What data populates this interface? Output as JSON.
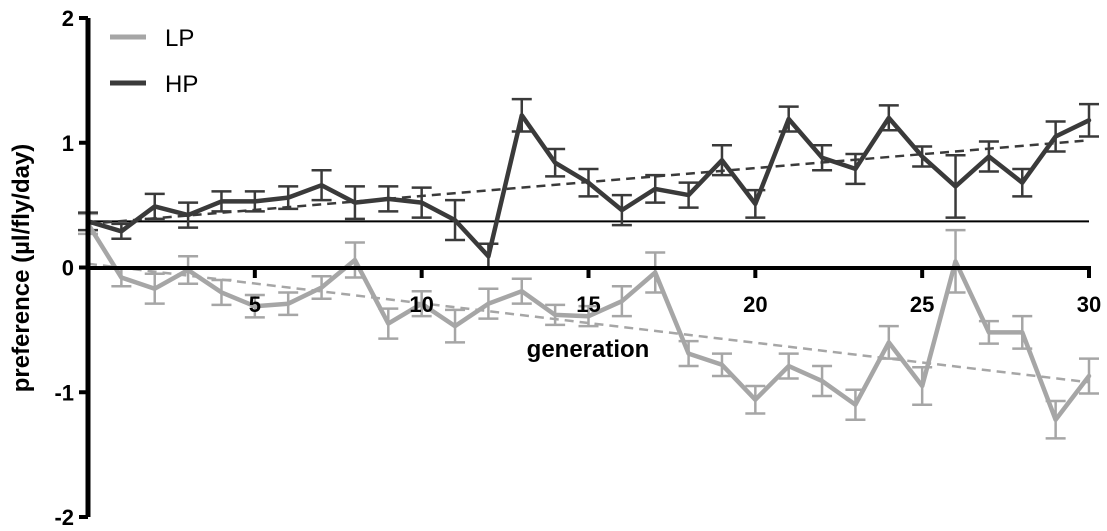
{
  "chart_data": {
    "type": "line",
    "xlabel": "generation",
    "ylabel": "preference (µl/fly/day)",
    "xlim": [
      0,
      30
    ],
    "ylim": [
      -2,
      2
    ],
    "x_ticks": [
      5,
      10,
      15,
      20,
      25,
      30
    ],
    "y_ticks": [
      -2,
      -1,
      0,
      1,
      2
    ],
    "grid": false,
    "legend_position": "top-left",
    "reference_line_y": 0.37,
    "x": [
      0,
      1,
      2,
      3,
      4,
      5,
      6,
      7,
      8,
      9,
      10,
      11,
      12,
      13,
      14,
      15,
      16,
      17,
      18,
      19,
      20,
      21,
      22,
      23,
      24,
      25,
      26,
      27,
      28,
      29,
      30
    ],
    "series": [
      {
        "name": "LP",
        "color": "#a6a6a6",
        "values": [
          0.35,
          -0.08,
          -0.17,
          -0.02,
          -0.2,
          -0.31,
          -0.29,
          -0.16,
          0.06,
          -0.45,
          -0.29,
          -0.47,
          -0.29,
          -0.19,
          -0.38,
          -0.39,
          -0.27,
          -0.04,
          -0.69,
          -0.78,
          -1.06,
          -0.79,
          -0.91,
          -1.1,
          -0.6,
          -0.95,
          0.05,
          -0.52,
          -0.52,
          -1.22,
          -0.87
        ],
        "errors": [
          0.08,
          0.07,
          0.12,
          0.11,
          0.1,
          0.09,
          0.09,
          0.09,
          0.14,
          0.12,
          0.1,
          0.13,
          0.12,
          0.1,
          0.08,
          0.08,
          0.12,
          0.16,
          0.1,
          0.09,
          0.11,
          0.1,
          0.12,
          0.12,
          0.13,
          0.15,
          0.25,
          0.09,
          0.13,
          0.15,
          0.14
        ],
        "trend": [
          0.03,
          -0.92
        ]
      },
      {
        "name": "HP",
        "color": "#3a3a3a",
        "values": [
          0.37,
          0.29,
          0.49,
          0.42,
          0.53,
          0.53,
          0.56,
          0.66,
          0.52,
          0.55,
          0.52,
          0.38,
          0.09,
          1.22,
          0.84,
          0.68,
          0.46,
          0.63,
          0.58,
          0.86,
          0.51,
          1.19,
          0.88,
          0.79,
          1.2,
          0.89,
          0.65,
          0.89,
          0.68,
          1.05,
          1.18
        ],
        "errors": [
          0.07,
          0.06,
          0.1,
          0.1,
          0.08,
          0.08,
          0.09,
          0.12,
          0.13,
          0.1,
          0.12,
          0.16,
          0.1,
          0.13,
          0.11,
          0.11,
          0.12,
          0.11,
          0.1,
          0.12,
          0.11,
          0.1,
          0.1,
          0.12,
          0.1,
          0.08,
          0.25,
          0.12,
          0.11,
          0.12,
          0.13
        ],
        "trend": [
          0.35,
          1.02
        ]
      }
    ]
  }
}
